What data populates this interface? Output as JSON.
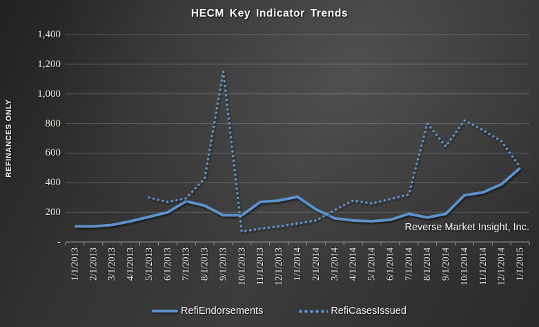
{
  "chart_data": {
    "type": "line",
    "title": "HECM Key Indicator Trends",
    "ylabel": "REFINANCES ONLY",
    "annotation": "Reverse Market Insight, Inc.",
    "ylim": [
      0,
      1400
    ],
    "ytick_step": 200,
    "ytick_labels": [
      "-",
      "200",
      "400",
      "600",
      "800",
      "1,000",
      "1,200",
      "1,400"
    ],
    "grid": "horizontal",
    "legend_position": "bottom",
    "line_color": "#5b93ce",
    "categories": [
      "1/1/2013",
      "2/1/2013",
      "3/1/2013",
      "4/1/2013",
      "5/1/2013",
      "6/1/2013",
      "7/1/2013",
      "8/1/2013",
      "9/1/2013",
      "10/1/2013",
      "11/1/2013",
      "12/1/2013",
      "1/1/2014",
      "2/1/2014",
      "3/1/2014",
      "4/1/2014",
      "5/1/2014",
      "6/1/2014",
      "7/1/2014",
      "8/1/2014",
      "9/1/2014",
      "10/1/2014",
      "11/1/2014",
      "12/1/2014",
      "1/1/2015"
    ],
    "series": [
      {
        "name": "RefiEndorsements",
        "style": "solid",
        "values": [
          105,
          105,
          115,
          140,
          170,
          200,
          275,
          245,
          180,
          180,
          270,
          280,
          305,
          220,
          160,
          145,
          140,
          150,
          190,
          165,
          190,
          315,
          335,
          390,
          500
        ]
      },
      {
        "name": "RefiCasesIssued",
        "style": "dotted",
        "values": [
          null,
          null,
          null,
          null,
          300,
          270,
          295,
          430,
          1150,
          70,
          90,
          105,
          125,
          145,
          215,
          280,
          260,
          290,
          320,
          800,
          645,
          820,
          755,
          680,
          505
        ]
      }
    ]
  }
}
